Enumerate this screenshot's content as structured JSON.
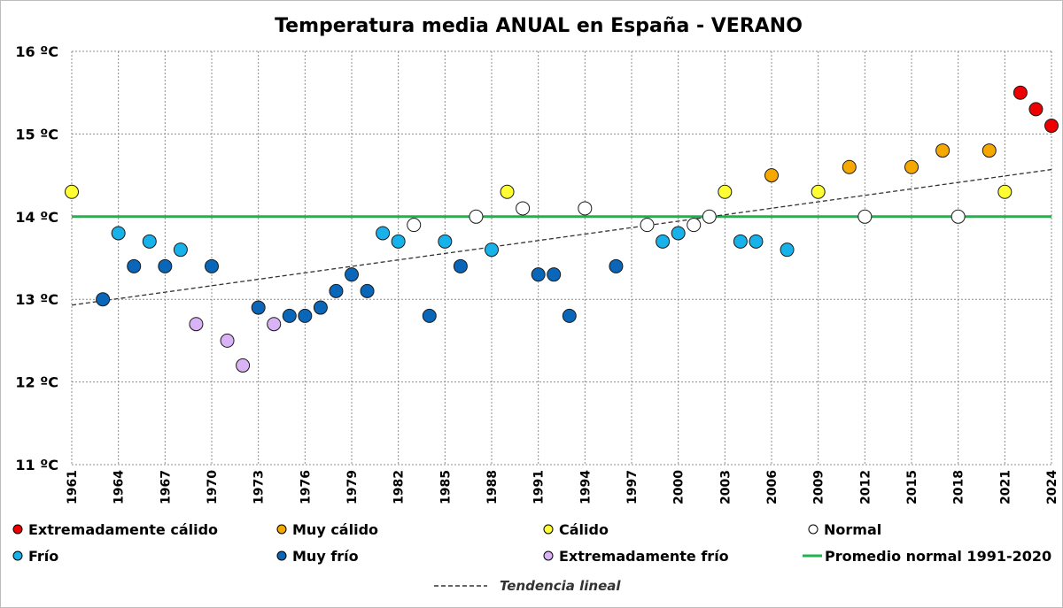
{
  "chart_data": {
    "type": "scatter",
    "title": "Temperatura media ANUAL en España - VERANO",
    "ylim": [
      11,
      16
    ],
    "yticks": [
      "16 ºC",
      "15 ºC",
      "14 ºC",
      "13 ºC",
      "12 ºC",
      "11 ºC"
    ],
    "ytick_values": [
      16,
      15,
      14,
      13,
      12,
      11
    ],
    "xlim": [
      1961,
      2024
    ],
    "xticks": [
      "1961",
      "1964",
      "1967",
      "1970",
      "1973",
      "1976",
      "1979",
      "1982",
      "1985",
      "1988",
      "1991",
      "1994",
      "1997",
      "2000",
      "2003",
      "2006",
      "2009",
      "2012",
      "2015",
      "2018",
      "2021",
      "2024"
    ],
    "xtick_values": [
      1961,
      1964,
      1967,
      1970,
      1973,
      1976,
      1979,
      1982,
      1985,
      1988,
      1991,
      1994,
      1997,
      2000,
      2003,
      2006,
      2009,
      2012,
      2015,
      2018,
      2021,
      2024
    ],
    "grid": true,
    "normal_value": 14.0,
    "trend": {
      "start": [
        1961,
        12.93
      ],
      "end": [
        2024,
        14.57
      ]
    },
    "categories": {
      "ec": {
        "label": "Extremadamente cálido",
        "color": "#ee0000"
      },
      "mc": {
        "label": "Muy cálido",
        "color": "#f5a800"
      },
      "c": {
        "label": "Cálido",
        "color": "#ffff33"
      },
      "n": {
        "label": "Normal",
        "color": "#ffffff"
      },
      "f": {
        "label": "Frío",
        "color": "#18b2ea"
      },
      "mf": {
        "label": "Muy frío",
        "color": "#0a66b8"
      },
      "ef": {
        "label": "Extremadamente frío",
        "color": "#d9b3f5"
      }
    },
    "normal_label": "Promedio normal 1991-2020",
    "normal_color": "#1db34d",
    "trend_label": "Tendencia lineal",
    "points": [
      {
        "year": 1961,
        "value": 14.3,
        "cat": "c"
      },
      {
        "year": 1963,
        "value": 13.0,
        "cat": "mf"
      },
      {
        "year": 1964,
        "value": 13.8,
        "cat": "f"
      },
      {
        "year": 1965,
        "value": 13.4,
        "cat": "mf"
      },
      {
        "year": 1966,
        "value": 13.7,
        "cat": "f"
      },
      {
        "year": 1967,
        "value": 13.4,
        "cat": "mf"
      },
      {
        "year": 1968,
        "value": 13.6,
        "cat": "f"
      },
      {
        "year": 1969,
        "value": 12.7,
        "cat": "ef"
      },
      {
        "year": 1970,
        "value": 13.4,
        "cat": "mf"
      },
      {
        "year": 1971,
        "value": 12.5,
        "cat": "ef"
      },
      {
        "year": 1972,
        "value": 12.2,
        "cat": "ef"
      },
      {
        "year": 1973,
        "value": 12.9,
        "cat": "mf"
      },
      {
        "year": 1974,
        "value": 12.7,
        "cat": "ef"
      },
      {
        "year": 1975,
        "value": 12.8,
        "cat": "mf"
      },
      {
        "year": 1976,
        "value": 12.8,
        "cat": "mf"
      },
      {
        "year": 1977,
        "value": 12.9,
        "cat": "mf"
      },
      {
        "year": 1978,
        "value": 13.1,
        "cat": "mf"
      },
      {
        "year": 1979,
        "value": 13.3,
        "cat": "mf"
      },
      {
        "year": 1980,
        "value": 13.1,
        "cat": "mf"
      },
      {
        "year": 1981,
        "value": 13.8,
        "cat": "f"
      },
      {
        "year": 1982,
        "value": 13.7,
        "cat": "f"
      },
      {
        "year": 1983,
        "value": 13.9,
        "cat": "n"
      },
      {
        "year": 1984,
        "value": 12.8,
        "cat": "mf"
      },
      {
        "year": 1985,
        "value": 13.7,
        "cat": "f"
      },
      {
        "year": 1986,
        "value": 13.4,
        "cat": "mf"
      },
      {
        "year": 1987,
        "value": 14.0,
        "cat": "n"
      },
      {
        "year": 1988,
        "value": 13.6,
        "cat": "f"
      },
      {
        "year": 1989,
        "value": 14.3,
        "cat": "c"
      },
      {
        "year": 1990,
        "value": 14.1,
        "cat": "n"
      },
      {
        "year": 1991,
        "value": 13.3,
        "cat": "mf"
      },
      {
        "year": 1992,
        "value": 13.3,
        "cat": "mf"
      },
      {
        "year": 1993,
        "value": 12.8,
        "cat": "mf"
      },
      {
        "year": 1994,
        "value": 14.1,
        "cat": "n"
      },
      {
        "year": 1996,
        "value": 13.4,
        "cat": "mf"
      },
      {
        "year": 1998,
        "value": 13.9,
        "cat": "n"
      },
      {
        "year": 1999,
        "value": 13.7,
        "cat": "f"
      },
      {
        "year": 2000,
        "value": 13.8,
        "cat": "f"
      },
      {
        "year": 2001,
        "value": 13.9,
        "cat": "n"
      },
      {
        "year": 2002,
        "value": 14.0,
        "cat": "n"
      },
      {
        "year": 2003,
        "value": 14.3,
        "cat": "c"
      },
      {
        "year": 2004,
        "value": 13.7,
        "cat": "f"
      },
      {
        "year": 2005,
        "value": 13.7,
        "cat": "f"
      },
      {
        "year": 2006,
        "value": 14.5,
        "cat": "mc"
      },
      {
        "year": 2007,
        "value": 13.6,
        "cat": "f"
      },
      {
        "year": 2009,
        "value": 14.3,
        "cat": "c"
      },
      {
        "year": 2011,
        "value": 14.6,
        "cat": "mc"
      },
      {
        "year": 2012,
        "value": 14.0,
        "cat": "n"
      },
      {
        "year": 2015,
        "value": 14.6,
        "cat": "mc"
      },
      {
        "year": 2017,
        "value": 14.8,
        "cat": "mc"
      },
      {
        "year": 2018,
        "value": 14.0,
        "cat": "n"
      },
      {
        "year": 2020,
        "value": 14.8,
        "cat": "mc"
      },
      {
        "year": 2021,
        "value": 14.3,
        "cat": "c"
      },
      {
        "year": 2022,
        "value": 15.5,
        "cat": "ec"
      },
      {
        "year": 2023,
        "value": 15.3,
        "cat": "ec"
      },
      {
        "year": 2024,
        "value": 15.1,
        "cat": "ec"
      }
    ]
  }
}
